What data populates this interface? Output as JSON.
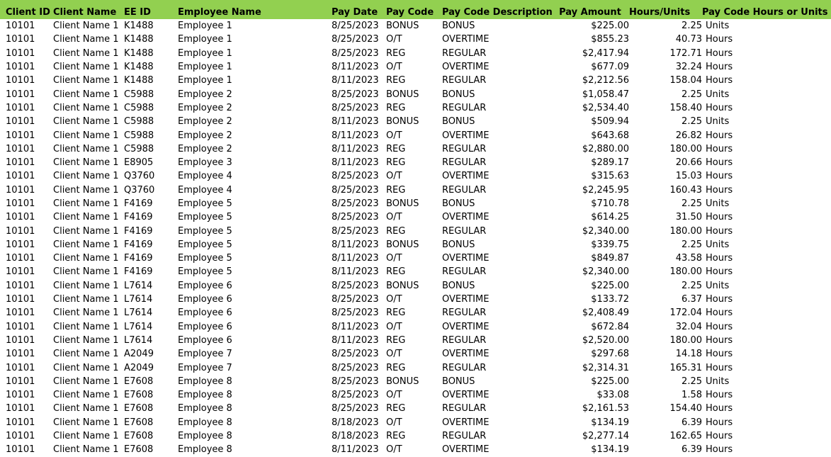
{
  "columns": [
    "Client ID",
    "Client Name",
    "EE ID",
    "Employee Name",
    "Pay Date",
    "Pay Code",
    "Pay Code Description",
    "Pay Amount",
    "Hours/Units",
    "Pay Code Hours or Units"
  ],
  "header_color": "#92d050",
  "rows": [
    {
      "client_id": "10101",
      "client_name": "Client Name 1",
      "ee_id": "K1488",
      "employee": "Employee 1",
      "pay_date": "8/25/2023",
      "pay_code": "BONUS",
      "description": "BONUS",
      "amount": "$225.00",
      "hours": "2.25",
      "unit": "Units"
    },
    {
      "client_id": "10101",
      "client_name": "Client Name 1",
      "ee_id": "K1488",
      "employee": "Employee 1",
      "pay_date": "8/25/2023",
      "pay_code": "O/T",
      "description": "OVERTIME",
      "amount": "$855.23",
      "hours": "40.73",
      "unit": "Hours"
    },
    {
      "client_id": "10101",
      "client_name": "Client Name 1",
      "ee_id": "K1488",
      "employee": "Employee 1",
      "pay_date": "8/25/2023",
      "pay_code": "REG",
      "description": "REGULAR",
      "amount": "$2,417.94",
      "hours": "172.71",
      "unit": "Hours"
    },
    {
      "client_id": "10101",
      "client_name": "Client Name 1",
      "ee_id": "K1488",
      "employee": "Employee 1",
      "pay_date": "8/11/2023",
      "pay_code": "O/T",
      "description": "OVERTIME",
      "amount": "$677.09",
      "hours": "32.24",
      "unit": "Hours"
    },
    {
      "client_id": "10101",
      "client_name": "Client Name 1",
      "ee_id": "K1488",
      "employee": "Employee 1",
      "pay_date": "8/11/2023",
      "pay_code": "REG",
      "description": "REGULAR",
      "amount": "$2,212.56",
      "hours": "158.04",
      "unit": "Hours"
    },
    {
      "client_id": "10101",
      "client_name": "Client Name 1",
      "ee_id": "C5988",
      "employee": "Employee 2",
      "pay_date": "8/25/2023",
      "pay_code": "BONUS",
      "description": "BONUS",
      "amount": "$1,058.47",
      "hours": "2.25",
      "unit": "Units"
    },
    {
      "client_id": "10101",
      "client_name": "Client Name 1",
      "ee_id": "C5988",
      "employee": "Employee 2",
      "pay_date": "8/25/2023",
      "pay_code": "REG",
      "description": "REGULAR",
      "amount": "$2,534.40",
      "hours": "158.40",
      "unit": "Hours"
    },
    {
      "client_id": "10101",
      "client_name": "Client Name 1",
      "ee_id": "C5988",
      "employee": "Employee 2",
      "pay_date": "8/11/2023",
      "pay_code": "BONUS",
      "description": "BONUS",
      "amount": "$509.94",
      "hours": "2.25",
      "unit": "Units"
    },
    {
      "client_id": "10101",
      "client_name": "Client Name 1",
      "ee_id": "C5988",
      "employee": "Employee 2",
      "pay_date": "8/11/2023",
      "pay_code": "O/T",
      "description": "OVERTIME",
      "amount": "$643.68",
      "hours": "26.82",
      "unit": "Hours"
    },
    {
      "client_id": "10101",
      "client_name": "Client Name 1",
      "ee_id": "C5988",
      "employee": "Employee 2",
      "pay_date": "8/11/2023",
      "pay_code": "REG",
      "description": "REGULAR",
      "amount": "$2,880.00",
      "hours": "180.00",
      "unit": "Hours"
    },
    {
      "client_id": "10101",
      "client_name": "Client Name 1",
      "ee_id": "E8905",
      "employee": "Employee 3",
      "pay_date": "8/11/2023",
      "pay_code": "REG",
      "description": "REGULAR",
      "amount": "$289.17",
      "hours": "20.66",
      "unit": "Hours"
    },
    {
      "client_id": "10101",
      "client_name": "Client Name 1",
      "ee_id": "Q3760",
      "employee": "Employee 4",
      "pay_date": "8/25/2023",
      "pay_code": "O/T",
      "description": "OVERTIME",
      "amount": "$315.63",
      "hours": "15.03",
      "unit": "Hours"
    },
    {
      "client_id": "10101",
      "client_name": "Client Name 1",
      "ee_id": "Q3760",
      "employee": "Employee 4",
      "pay_date": "8/25/2023",
      "pay_code": "REG",
      "description": "REGULAR",
      "amount": "$2,245.95",
      "hours": "160.43",
      "unit": "Hours"
    },
    {
      "client_id": "10101",
      "client_name": "Client Name 1",
      "ee_id": "F4169",
      "employee": "Employee 5",
      "pay_date": "8/25/2023",
      "pay_code": "BONUS",
      "description": "BONUS",
      "amount": "$710.78",
      "hours": "2.25",
      "unit": "Units"
    },
    {
      "client_id": "10101",
      "client_name": "Client Name 1",
      "ee_id": "F4169",
      "employee": "Employee 5",
      "pay_date": "8/25/2023",
      "pay_code": "O/T",
      "description": "OVERTIME",
      "amount": "$614.25",
      "hours": "31.50",
      "unit": "Hours"
    },
    {
      "client_id": "10101",
      "client_name": "Client Name 1",
      "ee_id": "F4169",
      "employee": "Employee 5",
      "pay_date": "8/25/2023",
      "pay_code": "REG",
      "description": "REGULAR",
      "amount": "$2,340.00",
      "hours": "180.00",
      "unit": "Hours"
    },
    {
      "client_id": "10101",
      "client_name": "Client Name 1",
      "ee_id": "F4169",
      "employee": "Employee 5",
      "pay_date": "8/11/2023",
      "pay_code": "BONUS",
      "description": "BONUS",
      "amount": "$339.75",
      "hours": "2.25",
      "unit": "Units"
    },
    {
      "client_id": "10101",
      "client_name": "Client Name 1",
      "ee_id": "F4169",
      "employee": "Employee 5",
      "pay_date": "8/11/2023",
      "pay_code": "O/T",
      "description": "OVERTIME",
      "amount": "$849.87",
      "hours": "43.58",
      "unit": "Hours"
    },
    {
      "client_id": "10101",
      "client_name": "Client Name 1",
      "ee_id": "F4169",
      "employee": "Employee 5",
      "pay_date": "8/11/2023",
      "pay_code": "REG",
      "description": "REGULAR",
      "amount": "$2,340.00",
      "hours": "180.00",
      "unit": "Hours"
    },
    {
      "client_id": "10101",
      "client_name": "Client Name 1",
      "ee_id": "L7614",
      "employee": "Employee 6",
      "pay_date": "8/25/2023",
      "pay_code": "BONUS",
      "description": "BONUS",
      "amount": "$225.00",
      "hours": "2.25",
      "unit": "Units"
    },
    {
      "client_id": "10101",
      "client_name": "Client Name 1",
      "ee_id": "L7614",
      "employee": "Employee 6",
      "pay_date": "8/25/2023",
      "pay_code": "O/T",
      "description": "OVERTIME",
      "amount": "$133.72",
      "hours": "6.37",
      "unit": "Hours"
    },
    {
      "client_id": "10101",
      "client_name": "Client Name 1",
      "ee_id": "L7614",
      "employee": "Employee 6",
      "pay_date": "8/25/2023",
      "pay_code": "REG",
      "description": "REGULAR",
      "amount": "$2,408.49",
      "hours": "172.04",
      "unit": "Hours"
    },
    {
      "client_id": "10101",
      "client_name": "Client Name 1",
      "ee_id": "L7614",
      "employee": "Employee 6",
      "pay_date": "8/11/2023",
      "pay_code": "O/T",
      "description": "OVERTIME",
      "amount": "$672.84",
      "hours": "32.04",
      "unit": "Hours"
    },
    {
      "client_id": "10101",
      "client_name": "Client Name 1",
      "ee_id": "L7614",
      "employee": "Employee 6",
      "pay_date": "8/11/2023",
      "pay_code": "REG",
      "description": "REGULAR",
      "amount": "$2,520.00",
      "hours": "180.00",
      "unit": "Hours"
    },
    {
      "client_id": "10101",
      "client_name": "Client Name 1",
      "ee_id": "A2049",
      "employee": "Employee 7",
      "pay_date": "8/25/2023",
      "pay_code": "O/T",
      "description": "OVERTIME",
      "amount": "$297.68",
      "hours": "14.18",
      "unit": "Hours"
    },
    {
      "client_id": "10101",
      "client_name": "Client Name 1",
      "ee_id": "A2049",
      "employee": "Employee 7",
      "pay_date": "8/25/2023",
      "pay_code": "REG",
      "description": "REGULAR",
      "amount": "$2,314.31",
      "hours": "165.31",
      "unit": "Hours"
    },
    {
      "client_id": "10101",
      "client_name": "Client Name 1",
      "ee_id": "E7608",
      "employee": "Employee 8",
      "pay_date": "8/25/2023",
      "pay_code": "BONUS",
      "description": "BONUS",
      "amount": "$225.00",
      "hours": "2.25",
      "unit": "Units"
    },
    {
      "client_id": "10101",
      "client_name": "Client Name 1",
      "ee_id": "E7608",
      "employee": "Employee 8",
      "pay_date": "8/25/2023",
      "pay_code": "O/T",
      "description": "OVERTIME",
      "amount": "$33.08",
      "hours": "1.58",
      "unit": "Hours"
    },
    {
      "client_id": "10101",
      "client_name": "Client Name 1",
      "ee_id": "E7608",
      "employee": "Employee 8",
      "pay_date": "8/25/2023",
      "pay_code": "REG",
      "description": "REGULAR",
      "amount": "$2,161.53",
      "hours": "154.40",
      "unit": "Hours"
    },
    {
      "client_id": "10101",
      "client_name": "Client Name 1",
      "ee_id": "E7608",
      "employee": "Employee 8",
      "pay_date": "8/18/2023",
      "pay_code": "O/T",
      "description": "OVERTIME",
      "amount": "$134.19",
      "hours": "6.39",
      "unit": "Hours"
    },
    {
      "client_id": "10101",
      "client_name": "Client Name 1",
      "ee_id": "E7608",
      "employee": "Employee 8",
      "pay_date": "8/18/2023",
      "pay_code": "REG",
      "description": "REGULAR",
      "amount": "$2,277.14",
      "hours": "162.65",
      "unit": "Hours"
    },
    {
      "client_id": "10101",
      "client_name": "Client Name 1",
      "ee_id": "E7608",
      "employee": "Employee 8",
      "pay_date": "8/11/2023",
      "pay_code": "O/T",
      "description": "OVERTIME",
      "amount": "$134.19",
      "hours": "6.39",
      "unit": "Hours"
    }
  ]
}
